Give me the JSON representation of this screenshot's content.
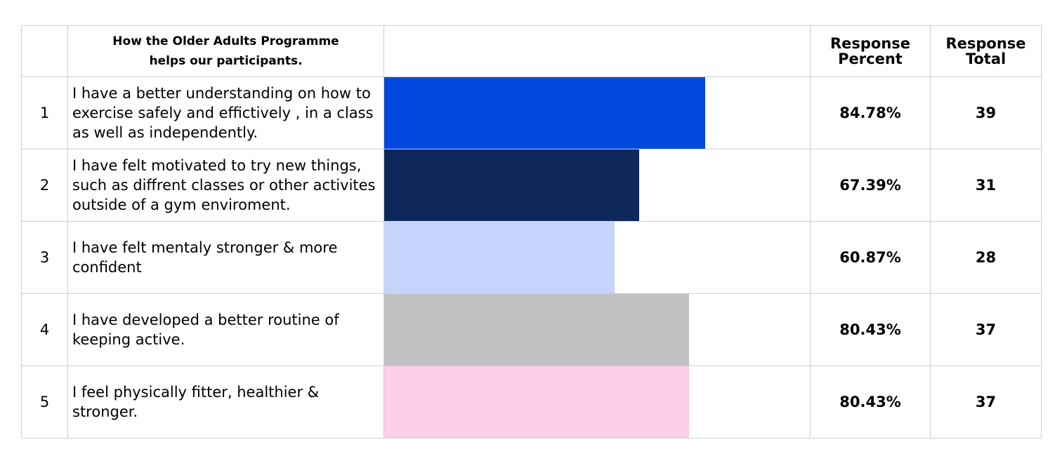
{
  "table": {
    "header_question": "How the Older Adults Programme helps our participants.",
    "header_percent": "Response Percent",
    "header_total": "Response Total"
  },
  "chart_data": {
    "type": "bar",
    "orientation": "horizontal",
    "xlim": [
      0,
      100
    ],
    "rows": [
      {
        "number": "1",
        "statement": "I have a better understanding on how to exercise safely and effictively , in a class as well as independently.",
        "percent_label": "84.78%",
        "percent": 84.78,
        "total": "39",
        "color": "#0349e0"
      },
      {
        "number": "2",
        "statement": "I have felt motivated to try new things, such as diffrent classes or other activites outside of a gym enviroment.",
        "percent_label": "67.39%",
        "percent": 67.39,
        "total": "31",
        "color": "#0e285c"
      },
      {
        "number": "3",
        "statement": "I have felt mentaly stronger & more confident",
        "percent_label": "60.87%",
        "percent": 60.87,
        "total": "28",
        "color": "#c6d4fd"
      },
      {
        "number": "4",
        "statement": "I have developed a better routine of keeping active.",
        "percent_label": "80.43%",
        "percent": 80.43,
        "total": "37",
        "color": "#c1c1c1"
      },
      {
        "number": "5",
        "statement": "I feel physically fitter, healthier & stronger.",
        "percent_label": "80.43%",
        "percent": 80.43,
        "total": "37",
        "color": "#fdcfe8"
      }
    ]
  }
}
